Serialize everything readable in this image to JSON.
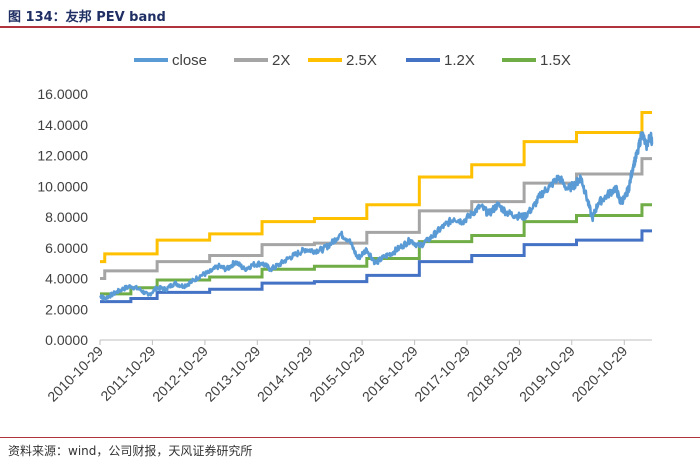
{
  "header": {
    "title": "图 134：友邦 PEV band"
  },
  "footer": {
    "source": "资料来源：wind，公司财报，天风证券研究所"
  },
  "chart_data": {
    "type": "line",
    "title": "",
    "xlabel": "",
    "ylabel": "",
    "ylim": [
      0,
      16
    ],
    "yticks": [
      "0.0000",
      "2.0000",
      "4.0000",
      "6.0000",
      "8.0000",
      "10.0000",
      "12.0000",
      "14.0000",
      "16.0000"
    ],
    "xticks": [
      "2010-10-29",
      "2011-10-29",
      "2012-10-29",
      "2013-10-29",
      "2014-10-29",
      "2015-10-29",
      "2016-10-29",
      "2017-10-29",
      "2018-10-29",
      "2019-10-29",
      "2020-10-29"
    ],
    "xlim": [
      "2010-10-29",
      "2021-05-10"
    ],
    "grid": false,
    "legend_position": "top",
    "bands": [
      {
        "name": "2X",
        "color": "#a5a5a5",
        "steps": [
          [
            "2010-10-29",
            4.0
          ],
          [
            "2010-12-01",
            4.5
          ],
          [
            "2011-12-01",
            5.1
          ],
          [
            "2012-12-01",
            5.5
          ],
          [
            "2013-12-01",
            6.2
          ],
          [
            "2014-12-01",
            6.3
          ],
          [
            "2015-12-01",
            7.0
          ],
          [
            "2016-12-01",
            8.4
          ],
          [
            "2017-12-01",
            9.0
          ],
          [
            "2018-12-01",
            10.2
          ],
          [
            "2019-12-01",
            10.8
          ],
          [
            "2021-03-01",
            11.8
          ]
        ]
      },
      {
        "name": "2.5X",
        "color": "#ffc000",
        "steps": [
          [
            "2010-10-29",
            5.1
          ],
          [
            "2010-12-01",
            5.6
          ],
          [
            "2011-12-01",
            6.5
          ],
          [
            "2012-12-01",
            6.9
          ],
          [
            "2013-12-01",
            7.7
          ],
          [
            "2014-12-01",
            7.9
          ],
          [
            "2015-12-01",
            8.8
          ],
          [
            "2016-12-01",
            10.6
          ],
          [
            "2017-12-01",
            11.4
          ],
          [
            "2018-12-01",
            12.9
          ],
          [
            "2019-12-01",
            13.5
          ],
          [
            "2021-03-01",
            14.8
          ]
        ]
      },
      {
        "name": "1.2X",
        "color": "#4472c4",
        "steps": [
          [
            "2010-10-29",
            2.5
          ],
          [
            "2011-06-01",
            2.7
          ],
          [
            "2011-12-01",
            3.1
          ],
          [
            "2012-12-01",
            3.3
          ],
          [
            "2013-12-01",
            3.7
          ],
          [
            "2014-12-01",
            3.8
          ],
          [
            "2015-12-01",
            4.2
          ],
          [
            "2016-12-01",
            5.1
          ],
          [
            "2017-12-01",
            5.5
          ],
          [
            "2018-12-01",
            6.2
          ],
          [
            "2019-12-01",
            6.5
          ],
          [
            "2021-03-01",
            7.1
          ]
        ]
      },
      {
        "name": "1.5X",
        "color": "#70ad47",
        "steps": [
          [
            "2010-10-29",
            3.0
          ],
          [
            "2011-06-01",
            3.4
          ],
          [
            "2011-12-01",
            3.9
          ],
          [
            "2012-12-01",
            4.1
          ],
          [
            "2013-12-01",
            4.6
          ],
          [
            "2014-12-01",
            4.8
          ],
          [
            "2015-12-01",
            5.3
          ],
          [
            "2016-12-01",
            6.4
          ],
          [
            "2017-12-01",
            6.8
          ],
          [
            "2018-12-01",
            7.7
          ],
          [
            "2019-12-01",
            8.1
          ],
          [
            "2021-03-01",
            8.8
          ]
        ]
      }
    ],
    "series": [
      {
        "name": "close",
        "color": "#5b9bd5",
        "points": [
          [
            "2010-10-29",
            2.9
          ],
          [
            "2010-11-30",
            2.7
          ],
          [
            "2011-01-31",
            3.0
          ],
          [
            "2011-03-31",
            3.3
          ],
          [
            "2011-05-31",
            3.5
          ],
          [
            "2011-07-31",
            3.3
          ],
          [
            "2011-09-30",
            2.9
          ],
          [
            "2011-11-30",
            3.4
          ],
          [
            "2012-01-31",
            3.3
          ],
          [
            "2012-03-31",
            3.7
          ],
          [
            "2012-05-31",
            3.5
          ],
          [
            "2012-07-31",
            3.8
          ],
          [
            "2012-09-30",
            4.2
          ],
          [
            "2012-11-30",
            4.4
          ],
          [
            "2013-01-31",
            4.8
          ],
          [
            "2013-03-31",
            4.6
          ],
          [
            "2013-05-31",
            5.1
          ],
          [
            "2013-07-31",
            4.6
          ],
          [
            "2013-09-30",
            4.9
          ],
          [
            "2013-11-30",
            5.0
          ],
          [
            "2014-01-31",
            4.6
          ],
          [
            "2014-03-31",
            4.9
          ],
          [
            "2014-05-31",
            5.3
          ],
          [
            "2014-07-31",
            5.6
          ],
          [
            "2014-09-30",
            5.9
          ],
          [
            "2014-11-30",
            5.8
          ],
          [
            "2015-01-31",
            5.9
          ],
          [
            "2015-03-31",
            6.3
          ],
          [
            "2015-05-31",
            6.9
          ],
          [
            "2015-07-31",
            6.5
          ],
          [
            "2015-09-30",
            5.3
          ],
          [
            "2015-11-30",
            5.9
          ],
          [
            "2016-01-31",
            5.0
          ],
          [
            "2016-03-31",
            5.4
          ],
          [
            "2016-05-31",
            5.7
          ],
          [
            "2016-07-31",
            6.1
          ],
          [
            "2016-09-30",
            6.5
          ],
          [
            "2016-11-30",
            6.1
          ],
          [
            "2017-01-31",
            6.5
          ],
          [
            "2017-03-31",
            7.0
          ],
          [
            "2017-05-31",
            7.5
          ],
          [
            "2017-07-31",
            7.9
          ],
          [
            "2017-09-30",
            7.7
          ],
          [
            "2017-11-30",
            8.2
          ],
          [
            "2018-01-31",
            8.7
          ],
          [
            "2018-03-31",
            8.2
          ],
          [
            "2018-05-31",
            8.8
          ],
          [
            "2018-07-31",
            8.3
          ],
          [
            "2018-09-30",
            8.1
          ],
          [
            "2018-11-30",
            8.0
          ],
          [
            "2019-01-31",
            8.6
          ],
          [
            "2019-03-31",
            9.5
          ],
          [
            "2019-05-31",
            10.0
          ],
          [
            "2019-07-31",
            10.6
          ],
          [
            "2019-09-30",
            9.8
          ],
          [
            "2019-11-30",
            10.2
          ],
          [
            "2019-12-31",
            10.6
          ],
          [
            "2020-01-31",
            9.6
          ],
          [
            "2020-03-20",
            7.9
          ],
          [
            "2020-04-30",
            8.9
          ],
          [
            "2020-06-30",
            9.4
          ],
          [
            "2020-08-31",
            9.9
          ],
          [
            "2020-09-30",
            9.0
          ],
          [
            "2020-10-31",
            9.2
          ],
          [
            "2020-11-30",
            9.9
          ],
          [
            "2020-12-31",
            11.4
          ],
          [
            "2021-01-31",
            12.2
          ],
          [
            "2021-02-28",
            13.5
          ],
          [
            "2021-03-31",
            12.6
          ],
          [
            "2021-04-30",
            13.3
          ],
          [
            "2021-05-10",
            12.9
          ]
        ]
      }
    ],
    "legend": [
      {
        "name": "close",
        "color": "#5b9bd5"
      },
      {
        "name": "2X",
        "color": "#a5a5a5"
      },
      {
        "name": "2.5X",
        "color": "#ffc000"
      },
      {
        "name": "1.2X",
        "color": "#4472c4"
      },
      {
        "name": "1.5X",
        "color": "#70ad47"
      }
    ]
  }
}
